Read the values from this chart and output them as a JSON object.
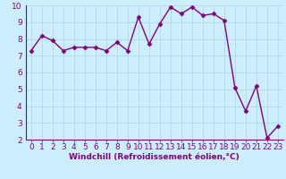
{
  "x": [
    0,
    1,
    2,
    3,
    4,
    5,
    6,
    7,
    8,
    9,
    10,
    11,
    12,
    13,
    14,
    15,
    16,
    17,
    18,
    19,
    20,
    21,
    22,
    23
  ],
  "y": [
    7.3,
    8.2,
    7.9,
    7.3,
    7.5,
    7.5,
    7.5,
    7.3,
    7.8,
    7.3,
    9.3,
    7.7,
    8.9,
    9.9,
    9.5,
    9.9,
    9.4,
    9.5,
    9.1,
    5.1,
    3.7,
    5.2,
    2.1,
    2.8
  ],
  "line_color": "#800080",
  "marker": "D",
  "marker_size": 2.5,
  "linewidth": 1.0,
  "bg_color": "#cceeff",
  "plot_bg_color": "#cceeff",
  "grid_color": "#aadddd",
  "xlabel": "Windchill (Refroidissement éolien,°C)",
  "xlabel_fontsize": 6.5,
  "tick_label_fontsize": 6.5,
  "ylim": [
    2,
    10
  ],
  "xlim": [
    -0.5,
    23.5
  ],
  "yticks": [
    2,
    3,
    4,
    5,
    6,
    7,
    8,
    9,
    10
  ],
  "xticks": [
    0,
    1,
    2,
    3,
    4,
    5,
    6,
    7,
    8,
    9,
    10,
    11,
    12,
    13,
    14,
    15,
    16,
    17,
    18,
    19,
    20,
    21,
    22,
    23
  ],
  "separator_color": "#800080",
  "bottom_bar_color": "#7755aa"
}
